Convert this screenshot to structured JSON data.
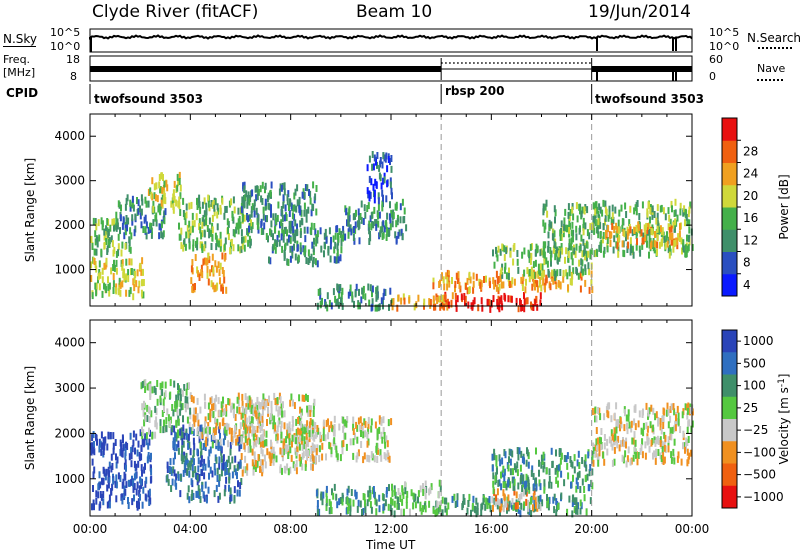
{
  "header": {
    "station": "Clyde River (fitACF)",
    "beam": "Beam 10",
    "date": "19/Jun/2014"
  },
  "strip1": {
    "left_label": "N.Sky",
    "left_ticks": [
      "10^5",
      "10^0"
    ],
    "right_ticks": [
      "10^5",
      "10^0"
    ],
    "right_label": "N.Search"
  },
  "strip2": {
    "left_label_top": "Freq.",
    "left_label_bottom": "[MHz]",
    "left_ticks": [
      "18",
      "8"
    ],
    "right_ticks": [
      "60",
      "0"
    ],
    "right_label": "Nave"
  },
  "cpid": {
    "label": "CPID",
    "segments": [
      {
        "name": "twofsound 3503",
        "start_hour": 0,
        "end_hour": 14
      },
      {
        "name": "rbsp 200",
        "start_hour": 14,
        "end_hour": 20
      },
      {
        "name": "twofsound 3503",
        "start_hour": 20,
        "end_hour": 24
      }
    ]
  },
  "xaxis": {
    "label": "Time UT",
    "ticks": [
      "00:00",
      "04:00",
      "08:00",
      "12:00",
      "16:00",
      "20:00",
      "00:00"
    ]
  },
  "chart_data": [
    {
      "type": "heatmap",
      "name": "power",
      "xlabel": "Time UT",
      "ylabel": "Slant Range [km]",
      "xlim_hours": [
        0,
        24
      ],
      "ylim": [
        180,
        4500
      ],
      "yticks": [
        "1000",
        "2000",
        "3000",
        "4000"
      ],
      "colorbar_label": "Power [dB]",
      "colorbar_ticks": [
        "4",
        "8",
        "12",
        "16",
        "20",
        "24",
        "28"
      ],
      "colorbar_colors": [
        "#0a1aff",
        "#2a4fc0",
        "#3f8f6a",
        "#44b04a",
        "#cfd83a",
        "#f0a020",
        "#f06010",
        "#e81010"
      ],
      "regions": [
        {
          "t0": 0.0,
          "t1": 2.2,
          "r0": 450,
          "r1": 1300,
          "level": 4
        },
        {
          "t0": 0.0,
          "t1": 1.6,
          "r0": 1400,
          "r1": 2200,
          "level": 3
        },
        {
          "t0": 1.0,
          "t1": 3.0,
          "r0": 1800,
          "r1": 2700,
          "level": 2
        },
        {
          "t0": 2.3,
          "t1": 3.6,
          "r0": 2400,
          "r1": 3200,
          "level": 4
        },
        {
          "t0": 4.0,
          "t1": 5.4,
          "r0": 600,
          "r1": 1400,
          "level": 5
        },
        {
          "t0": 3.5,
          "t1": 6.5,
          "r0": 1500,
          "r1": 2700,
          "level": 3
        },
        {
          "t0": 6.0,
          "t1": 9.0,
          "r0": 1900,
          "r1": 3000,
          "level": 2
        },
        {
          "t0": 7.0,
          "t1": 10.0,
          "r0": 1200,
          "r1": 2000,
          "level": 2
        },
        {
          "t0": 10.0,
          "t1": 12.6,
          "r0": 1700,
          "r1": 2600,
          "level": 2
        },
        {
          "t0": 11.0,
          "t1": 12.0,
          "r0": 2600,
          "r1": 3700,
          "level": 1
        },
        {
          "t0": 9.0,
          "t1": 12.0,
          "r0": 200,
          "r1": 700,
          "level": 2
        },
        {
          "t0": 12.0,
          "t1": 14.6,
          "r0": 200,
          "r1": 500,
          "level": 5
        },
        {
          "t0": 14.0,
          "t1": 18.0,
          "r0": 180,
          "r1": 500,
          "level": 7
        },
        {
          "t0": 13.5,
          "t1": 20.0,
          "r0": 600,
          "r1": 1000,
          "level": 5
        },
        {
          "t0": 16.0,
          "t1": 20.0,
          "r0": 900,
          "r1": 1600,
          "level": 3
        },
        {
          "t0": 18.0,
          "t1": 24.0,
          "r0": 1400,
          "r1": 2600,
          "level": 3
        },
        {
          "t0": 20.5,
          "t1": 23.5,
          "r0": 1600,
          "r1": 2100,
          "level": 5
        }
      ]
    },
    {
      "type": "heatmap",
      "name": "velocity",
      "xlabel": "Time UT",
      "ylabel": "Slant Range [km]",
      "xlim_hours": [
        0,
        24
      ],
      "ylim": [
        180,
        4500
      ],
      "yticks": [
        "1000",
        "2000",
        "3000",
        "4000"
      ],
      "colorbar_label": "Velocity [m s^-1]",
      "colorbar_ticks": [
        "1000",
        "500",
        "100",
        "25",
        "−25",
        "−100",
        "−500",
        "−1000"
      ],
      "colorbar_colors": [
        "#2a44b8",
        "#2f6fc0",
        "#3f8f6a",
        "#55c840",
        "#c8c8c8",
        "#f09020",
        "#f06010",
        "#e81010"
      ],
      "regions": [
        {
          "t0": 0.0,
          "t1": 2.4,
          "r0": 450,
          "r1": 2100,
          "level": 0
        },
        {
          "t0": 2.0,
          "t1": 4.0,
          "r0": 2000,
          "r1": 3200,
          "level": 3
        },
        {
          "t0": 3.0,
          "t1": 6.0,
          "r0": 600,
          "r1": 2200,
          "level": 1
        },
        {
          "t0": 4.0,
          "t1": 7.0,
          "r0": 1800,
          "r1": 2900,
          "level": 4
        },
        {
          "t0": 6.0,
          "t1": 9.0,
          "r0": 1200,
          "r1": 2900,
          "level": 4
        },
        {
          "t0": 8.0,
          "t1": 12.0,
          "r0": 1500,
          "r1": 2400,
          "level": 4
        },
        {
          "t0": 9.0,
          "t1": 12.0,
          "r0": 300,
          "r1": 900,
          "level": 2
        },
        {
          "t0": 12.0,
          "t1": 14.0,
          "r0": 300,
          "r1": 1000,
          "level": 3
        },
        {
          "t0": 14.0,
          "t1": 20.0,
          "r0": 300,
          "r1": 700,
          "level": 2
        },
        {
          "t0": 16.0,
          "t1": 18.0,
          "r0": 400,
          "r1": 800,
          "level": 5
        },
        {
          "t0": 16.0,
          "t1": 20.0,
          "r0": 800,
          "r1": 1700,
          "level": 2
        },
        {
          "t0": 20.0,
          "t1": 24.0,
          "r0": 1400,
          "r1": 2700,
          "level": 4
        }
      ]
    }
  ]
}
